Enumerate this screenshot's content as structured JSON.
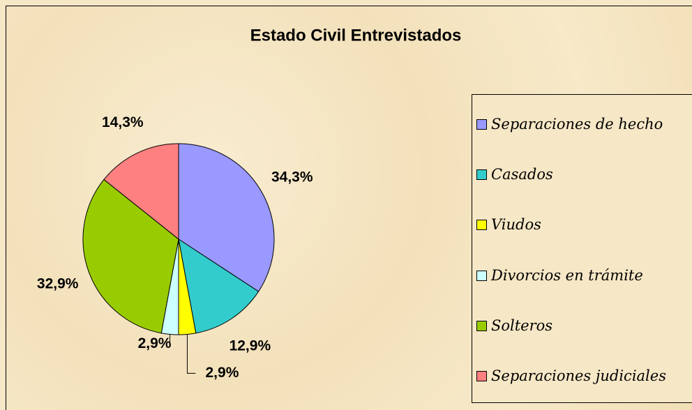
{
  "chart_data": {
    "type": "pie",
    "title": "Estado Civil Entrevistados",
    "categories": [
      "Separaciones de hecho",
      "Casados",
      "Viudos",
      "Divorcios en trámite",
      "Solteros",
      "Separaciones judiciales"
    ],
    "values": [
      34.3,
      12.9,
      2.9,
      2.9,
      32.9,
      14.3
    ],
    "value_labels": [
      "34,3%",
      "12,9%",
      "2,9%",
      "2,9%",
      "32,9%",
      "14,3%"
    ],
    "colors": [
      "#9999ff",
      "#33cccc",
      "#ffff00",
      "#ccffff",
      "#99cc00",
      "#ff8080"
    ],
    "legend": "right"
  }
}
